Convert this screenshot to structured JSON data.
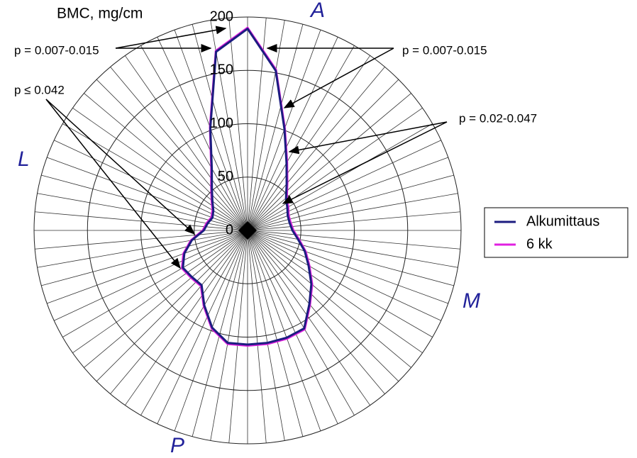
{
  "chart_data": {
    "type": "radar",
    "r_label": "BMC, mg/cm",
    "angles": [
      0,
      10,
      20,
      30,
      40,
      50,
      60,
      70,
      80,
      90,
      100,
      110,
      120,
      130,
      140,
      150,
      160,
      170,
      180,
      190,
      200,
      210,
      220,
      230,
      240,
      250,
      260,
      270,
      280,
      290,
      300,
      310,
      320,
      330,
      340,
      350
    ],
    "rlim": [
      0,
      200
    ],
    "rticks": [
      0,
      50,
      100,
      150,
      200
    ],
    "direction_labels": [
      "A",
      "M",
      "P",
      "L"
    ],
    "series": [
      {
        "name": "Alkumittaus",
        "color": "#1c1c80",
        "values": [
          189,
          152,
          101,
          73,
          57,
          47,
          43,
          40,
          40,
          42,
          48,
          57,
          66,
          78,
          90,
          106,
          107,
          107,
          107,
          107,
          97,
          81,
          67,
          68,
          70,
          63,
          53,
          41,
          38,
          35,
          37,
          43,
          52,
          67,
          102,
          170
        ]
      },
      {
        "name": "6 kk",
        "color": "#e020e0",
        "values": [
          190,
          153,
          102,
          74,
          58,
          48,
          44,
          41,
          41,
          43,
          49,
          58,
          67,
          79,
          91,
          107,
          108,
          108,
          108,
          108,
          98,
          82,
          68,
          69,
          71,
          64,
          54,
          42,
          39,
          36,
          38,
          44,
          53,
          68,
          103,
          171
        ]
      }
    ],
    "annotations": [
      "p = 0.007-0.015",
      "p = 0.007-0.015",
      "p ≤ 0.042",
      "p = 0.02-0.047"
    ]
  }
}
